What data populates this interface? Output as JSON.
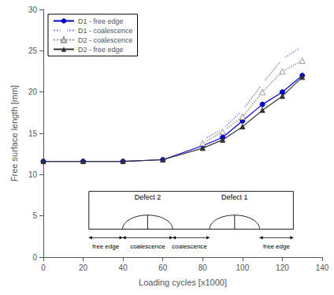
{
  "chart_data": {
    "type": "line",
    "xlabel": "Loading cycles [x1000]",
    "ylabel": "Free surface length [mm]",
    "xlim": [
      0,
      140
    ],
    "ylim": [
      0,
      30
    ],
    "xticks": [
      0,
      20,
      40,
      60,
      80,
      100,
      120,
      140
    ],
    "yticks": [
      0,
      5,
      10,
      15,
      20,
      25,
      30
    ],
    "grid": false,
    "legend": "upper left",
    "series": [
      {
        "name": "D1 - free edge",
        "color": "#0000cc",
        "marker": "circle",
        "line_style": "solid",
        "x": [
          0,
          20,
          40,
          60,
          80,
          90,
          100,
          110,
          120,
          130
        ],
        "values": [
          11.6,
          11.6,
          11.6,
          11.8,
          13.5,
          14.5,
          16.5,
          18.5,
          20.0,
          22.0
        ]
      },
      {
        "name": "D1 - coalescence",
        "color": "#8888ee",
        "marker": "open_circle",
        "line_style": "dotted",
        "x": [
          80,
          90,
          100,
          110,
          120,
          130
        ],
        "values": [
          14.2,
          15.5,
          17.8,
          21.0,
          24.0,
          25.5
        ]
      },
      {
        "name": "D2 - coalescence",
        "color": "#999999",
        "marker": "open_triangle",
        "line_style": "dotted",
        "x": [
          80,
          90,
          100,
          110,
          120,
          130
        ],
        "values": [
          13.8,
          15.2,
          17.0,
          20.0,
          22.5,
          23.8
        ]
      },
      {
        "name": "D2 - free edge",
        "color": "#333333",
        "marker": "triangle",
        "line_style": "solid",
        "x": [
          0,
          20,
          40,
          60,
          80,
          90,
          100,
          110,
          120,
          130
        ],
        "values": [
          11.6,
          11.6,
          11.6,
          11.8,
          13.2,
          14.2,
          15.8,
          17.8,
          19.5,
          21.8
        ]
      }
    ],
    "annotations": [
      "Defect 2",
      "Defect 1",
      "free edge",
      "coalescence",
      "coalescence",
      "free edge"
    ]
  }
}
